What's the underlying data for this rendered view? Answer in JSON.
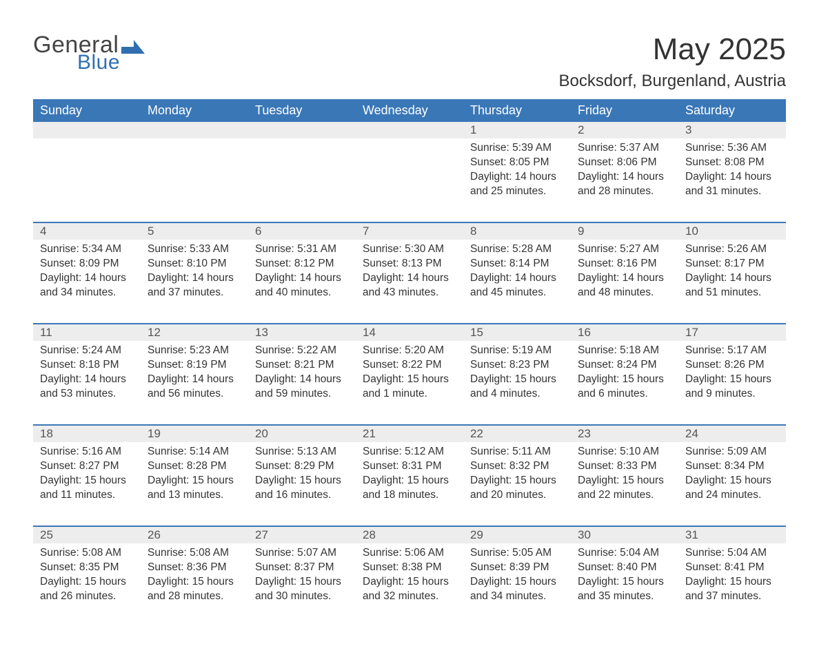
{
  "logo": {
    "text1": "General",
    "text2": "Blue",
    "mark_color": "#2f6fb0"
  },
  "title": "May 2025",
  "location": "Bocksdorf, Burgenland, Austria",
  "colors": {
    "header_bg": "#3a77b7",
    "header_text": "#ffffff",
    "daynum_bg": "#ededed",
    "rule": "#3a77b7",
    "body_text": "#333333"
  },
  "weekdays": [
    "Sunday",
    "Monday",
    "Tuesday",
    "Wednesday",
    "Thursday",
    "Friday",
    "Saturday"
  ],
  "weeks": [
    [
      null,
      null,
      null,
      null,
      {
        "n": "1",
        "sr": "5:39 AM",
        "ss": "8:05 PM",
        "dl": "14 hours and 25 minutes."
      },
      {
        "n": "2",
        "sr": "5:37 AM",
        "ss": "8:06 PM",
        "dl": "14 hours and 28 minutes."
      },
      {
        "n": "3",
        "sr": "5:36 AM",
        "ss": "8:08 PM",
        "dl": "14 hours and 31 minutes."
      }
    ],
    [
      {
        "n": "4",
        "sr": "5:34 AM",
        "ss": "8:09 PM",
        "dl": "14 hours and 34 minutes."
      },
      {
        "n": "5",
        "sr": "5:33 AM",
        "ss": "8:10 PM",
        "dl": "14 hours and 37 minutes."
      },
      {
        "n": "6",
        "sr": "5:31 AM",
        "ss": "8:12 PM",
        "dl": "14 hours and 40 minutes."
      },
      {
        "n": "7",
        "sr": "5:30 AM",
        "ss": "8:13 PM",
        "dl": "14 hours and 43 minutes."
      },
      {
        "n": "8",
        "sr": "5:28 AM",
        "ss": "8:14 PM",
        "dl": "14 hours and 45 minutes."
      },
      {
        "n": "9",
        "sr": "5:27 AM",
        "ss": "8:16 PM",
        "dl": "14 hours and 48 minutes."
      },
      {
        "n": "10",
        "sr": "5:26 AM",
        "ss": "8:17 PM",
        "dl": "14 hours and 51 minutes."
      }
    ],
    [
      {
        "n": "11",
        "sr": "5:24 AM",
        "ss": "8:18 PM",
        "dl": "14 hours and 53 minutes."
      },
      {
        "n": "12",
        "sr": "5:23 AM",
        "ss": "8:19 PM",
        "dl": "14 hours and 56 minutes."
      },
      {
        "n": "13",
        "sr": "5:22 AM",
        "ss": "8:21 PM",
        "dl": "14 hours and 59 minutes."
      },
      {
        "n": "14",
        "sr": "5:20 AM",
        "ss": "8:22 PM",
        "dl": "15 hours and 1 minute."
      },
      {
        "n": "15",
        "sr": "5:19 AM",
        "ss": "8:23 PM",
        "dl": "15 hours and 4 minutes."
      },
      {
        "n": "16",
        "sr": "5:18 AM",
        "ss": "8:24 PM",
        "dl": "15 hours and 6 minutes."
      },
      {
        "n": "17",
        "sr": "5:17 AM",
        "ss": "8:26 PM",
        "dl": "15 hours and 9 minutes."
      }
    ],
    [
      {
        "n": "18",
        "sr": "5:16 AM",
        "ss": "8:27 PM",
        "dl": "15 hours and 11 minutes."
      },
      {
        "n": "19",
        "sr": "5:14 AM",
        "ss": "8:28 PM",
        "dl": "15 hours and 13 minutes."
      },
      {
        "n": "20",
        "sr": "5:13 AM",
        "ss": "8:29 PM",
        "dl": "15 hours and 16 minutes."
      },
      {
        "n": "21",
        "sr": "5:12 AM",
        "ss": "8:31 PM",
        "dl": "15 hours and 18 minutes."
      },
      {
        "n": "22",
        "sr": "5:11 AM",
        "ss": "8:32 PM",
        "dl": "15 hours and 20 minutes."
      },
      {
        "n": "23",
        "sr": "5:10 AM",
        "ss": "8:33 PM",
        "dl": "15 hours and 22 minutes."
      },
      {
        "n": "24",
        "sr": "5:09 AM",
        "ss": "8:34 PM",
        "dl": "15 hours and 24 minutes."
      }
    ],
    [
      {
        "n": "25",
        "sr": "5:08 AM",
        "ss": "8:35 PM",
        "dl": "15 hours and 26 minutes."
      },
      {
        "n": "26",
        "sr": "5:08 AM",
        "ss": "8:36 PM",
        "dl": "15 hours and 28 minutes."
      },
      {
        "n": "27",
        "sr": "5:07 AM",
        "ss": "8:37 PM",
        "dl": "15 hours and 30 minutes."
      },
      {
        "n": "28",
        "sr": "5:06 AM",
        "ss": "8:38 PM",
        "dl": "15 hours and 32 minutes."
      },
      {
        "n": "29",
        "sr": "5:05 AM",
        "ss": "8:39 PM",
        "dl": "15 hours and 34 minutes."
      },
      {
        "n": "30",
        "sr": "5:04 AM",
        "ss": "8:40 PM",
        "dl": "15 hours and 35 minutes."
      },
      {
        "n": "31",
        "sr": "5:04 AM",
        "ss": "8:41 PM",
        "dl": "15 hours and 37 minutes."
      }
    ]
  ],
  "labels": {
    "sunrise": "Sunrise: ",
    "sunset": "Sunset: ",
    "daylight": "Daylight: "
  }
}
